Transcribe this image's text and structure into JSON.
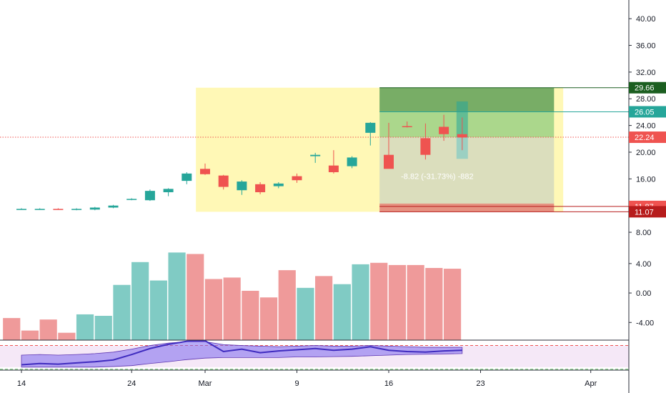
{
  "chart_data": {
    "type": "candlestick",
    "title": "",
    "price_axis": {
      "ticks": [
        "40.00",
        "36.00",
        "32.00",
        "28.00",
        "24.00",
        "20.00",
        "16.00",
        "12.00",
        "8.00"
      ],
      "ylim": [
        6.4,
        42.8
      ]
    },
    "time_axis": {
      "ticks": [
        {
          "label": "14",
          "index": 0
        },
        {
          "label": "24",
          "index": 6
        },
        {
          "label": "Mar",
          "index": 10
        },
        {
          "label": "9",
          "index": 15
        },
        {
          "label": "16",
          "index": 20
        },
        {
          "label": "23",
          "index": 25
        },
        {
          "label": "Apr",
          "index": 31
        }
      ]
    },
    "candles": [
      {
        "o": 11.5,
        "h": 11.6,
        "l": 11.4,
        "c": 11.5
      },
      {
        "o": 11.5,
        "h": 11.6,
        "l": 11.4,
        "c": 11.5
      },
      {
        "o": 11.5,
        "h": 11.6,
        "l": 11.4,
        "c": 11.4
      },
      {
        "o": 11.4,
        "h": 11.6,
        "l": 11.3,
        "c": 11.5
      },
      {
        "o": 11.4,
        "h": 11.8,
        "l": 11.3,
        "c": 11.7
      },
      {
        "o": 11.7,
        "h": 12.1,
        "l": 11.6,
        "c": 12.0
      },
      {
        "o": 12.9,
        "h": 13.1,
        "l": 12.8,
        "c": 13.0
      },
      {
        "o": 12.8,
        "h": 14.4,
        "l": 12.7,
        "c": 14.2
      },
      {
        "o": 14.0,
        "h": 14.6,
        "l": 13.4,
        "c": 14.5
      },
      {
        "o": 15.7,
        "h": 17.0,
        "l": 15.2,
        "c": 16.8
      },
      {
        "o": 17.5,
        "h": 18.3,
        "l": 16.6,
        "c": 16.7
      },
      {
        "o": 16.5,
        "h": 16.6,
        "l": 14.4,
        "c": 14.8
      },
      {
        "o": 14.3,
        "h": 15.8,
        "l": 13.6,
        "c": 15.6
      },
      {
        "o": 15.2,
        "h": 15.5,
        "l": 13.7,
        "c": 14.0
      },
      {
        "o": 14.9,
        "h": 15.5,
        "l": 14.6,
        "c": 15.3
      },
      {
        "o": 16.4,
        "h": 16.8,
        "l": 15.4,
        "c": 15.8
      },
      {
        "o": 19.4,
        "h": 19.9,
        "l": 18.4,
        "c": 19.6
      },
      {
        "o": 18.0,
        "h": 20.3,
        "l": 16.8,
        "c": 17.0
      },
      {
        "o": 17.9,
        "h": 19.4,
        "l": 17.6,
        "c": 19.2
      },
      {
        "o": 22.9,
        "h": 24.5,
        "l": 21.0,
        "c": 24.4
      },
      {
        "o": 19.6,
        "h": 24.4,
        "l": 17.6,
        "c": 17.5
      },
      {
        "o": 23.9,
        "h": 24.6,
        "l": 23.7,
        "c": 23.8
      },
      {
        "o": 22.1,
        "h": 24.3,
        "l": 18.9,
        "c": 19.6
      },
      {
        "o": 23.8,
        "h": 25.6,
        "l": 21.7,
        "c": 22.7
      },
      {
        "o": 22.7,
        "h": 25.2,
        "l": 20.3,
        "c": 22.2
      }
    ],
    "volume_histogram": {
      "ticks": [
        "4.00",
        "0.00",
        "-4.00"
      ],
      "ylim": [
        -6.4,
        6.8
      ],
      "values": [
        -3.4,
        -5.1,
        -3.6,
        -5.4,
        -2.9,
        -3.1,
        1.1,
        4.2,
        1.7,
        5.5,
        5.3,
        1.9,
        2.1,
        0.3,
        -0.6,
        3.1,
        0.7,
        2.3,
        1.2,
        3.9,
        4.1,
        3.8,
        3.8,
        3.4,
        3.3
      ],
      "colors": [
        "#ef9a9a",
        "#ef9a9a",
        "#ef9a9a",
        "#ef9a9a",
        "#80cbc4",
        "#80cbc4",
        "#80cbc4",
        "#80cbc4",
        "#80cbc4",
        "#80cbc4",
        "#ef9a9a",
        "#ef9a9a",
        "#ef9a9a",
        "#ef9a9a",
        "#ef9a9a",
        "#ef9a9a",
        "#80cbc4",
        "#ef9a9a",
        "#80cbc4",
        "#80cbc4",
        "#ef9a9a",
        "#ef9a9a",
        "#ef9a9a",
        "#ef9a9a",
        "#ef9a9a"
      ]
    },
    "oscillator": {
      "main_line": [
        0.18,
        0.22,
        0.2,
        0.24,
        0.28,
        0.34,
        0.52,
        0.72,
        0.86,
        0.96,
        0.98,
        0.62,
        0.7,
        0.58,
        0.64,
        0.68,
        0.72,
        0.66,
        0.7,
        0.78,
        0.66,
        0.62,
        0.6,
        0.64,
        0.66
      ],
      "band_upper": [
        0.5,
        0.52,
        0.5,
        0.52,
        0.55,
        0.6,
        0.7,
        0.82,
        0.9,
        0.95,
        0.95,
        0.85,
        0.82,
        0.8,
        0.78,
        0.8,
        0.82,
        0.8,
        0.8,
        0.82,
        0.8,
        0.78,
        0.76,
        0.76,
        0.76
      ],
      "band_lower": [
        0.1,
        0.1,
        0.1,
        0.1,
        0.1,
        0.12,
        0.15,
        0.22,
        0.28,
        0.35,
        0.4,
        0.42,
        0.42,
        0.42,
        0.42,
        0.44,
        0.44,
        0.45,
        0.46,
        0.48,
        0.5,
        0.52,
        0.53,
        0.54,
        0.55
      ],
      "upper_level": 0.82,
      "lower_level": 0.1
    },
    "position": {
      "type": "short",
      "entry": 22.24,
      "stop": 29.66,
      "targets": [
        26.05,
        11.87
      ],
      "target": 11.07,
      "stats": "-8.82 (-31.73%) -882",
      "start_index": 20,
      "end_index": 29
    },
    "highlight_box": {
      "start_index": 10,
      "end_index": 30,
      "top": 29.66,
      "bottom": 11.07
    },
    "price_tags": [
      {
        "value": 29.66,
        "label": "29.66",
        "color": "#1b5e20"
      },
      {
        "value": 26.05,
        "label": "26.05",
        "color": "#26a69a"
      },
      {
        "value": 22.24,
        "label": "22.24",
        "color": "#ef5350"
      },
      {
        "value": 11.87,
        "label": "11.87",
        "color": "#ef5350"
      },
      {
        "value": 11.07,
        "label": "11.07",
        "color": "#b71c1c"
      }
    ],
    "colors": {
      "up": "#26a69a",
      "down": "#ef5350",
      "highlight": "#fff59d",
      "profit": "#66bb6a",
      "loss": "#ef5350",
      "grid": "#f0f3fa",
      "axis": "#131722",
      "oscillator": "#3f2bbf",
      "oscillator_band": "#7b68ee"
    }
  }
}
